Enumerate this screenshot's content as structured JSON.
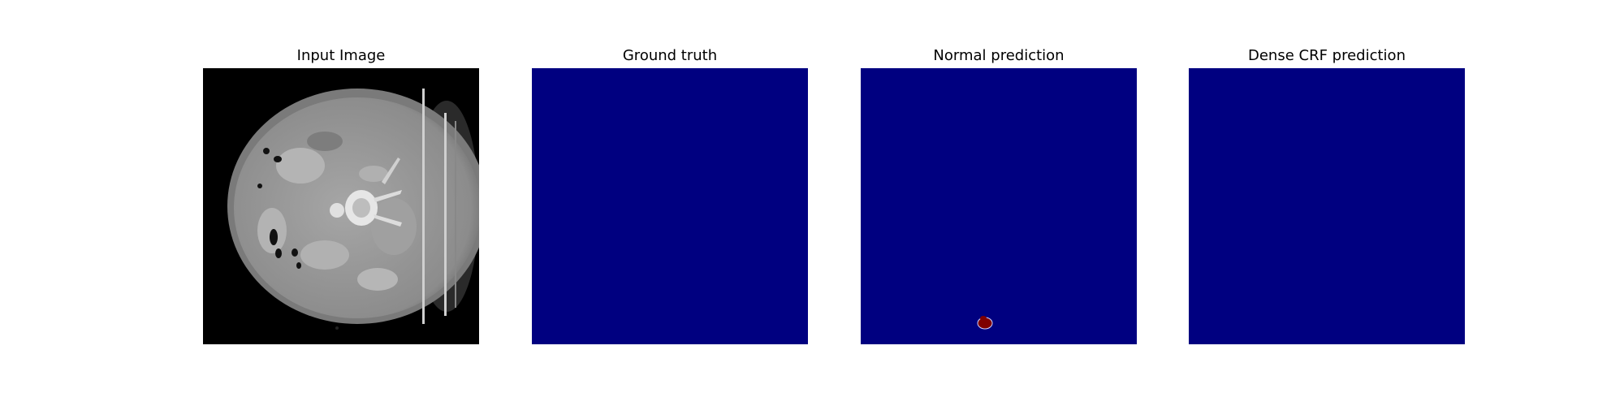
{
  "panels": [
    {
      "title": "Input Image"
    },
    {
      "title": "Ground truth"
    },
    {
      "title": "Normal prediction"
    },
    {
      "title": "Dense CRF prediction"
    }
  ],
  "colors": {
    "background_class": "#000080",
    "lesion_class": "#7f0000",
    "ct_body": "#9a9a9a",
    "ct_background": "#000000",
    "page": "#ffffff"
  }
}
